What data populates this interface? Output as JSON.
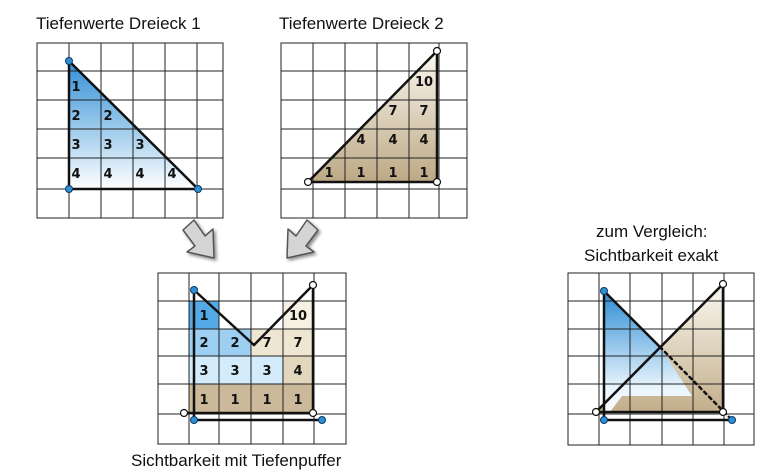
{
  "labels": {
    "triangle1_title": "Tiefenwerte Dreieck 1",
    "triangle2_title": "Tiefenwerte Dreieck 2",
    "buffer_title": "Sichtbarkeit mit Tiefenpuffer",
    "compare_line1": "zum Vergleich:",
    "compare_line2": "Sichtbarkeit exakt"
  },
  "triangle1_depths": [
    [
      "1"
    ],
    [
      "2",
      "2"
    ],
    [
      "3",
      "3",
      "3"
    ],
    [
      "4",
      "4",
      "4",
      "4"
    ]
  ],
  "triangle2_depths": [
    [
      "10"
    ],
    [
      "7",
      "7"
    ],
    [
      "4",
      "4",
      "4"
    ],
    [
      "1",
      "1",
      "1",
      "1"
    ]
  ],
  "buffer_depths": [
    [
      "1",
      "",
      "",
      "10"
    ],
    [
      "2",
      "2",
      "7",
      "7"
    ],
    [
      "3",
      "3",
      "3",
      "4"
    ],
    [
      "1",
      "1",
      "1",
      "1"
    ]
  ],
  "colors": {
    "blue_dark": "#2f8fd6",
    "blue_light": "#e8f4fd",
    "tan_dark": "#c7b391",
    "tan_light": "#f7f1e4",
    "grid": "#222222"
  }
}
